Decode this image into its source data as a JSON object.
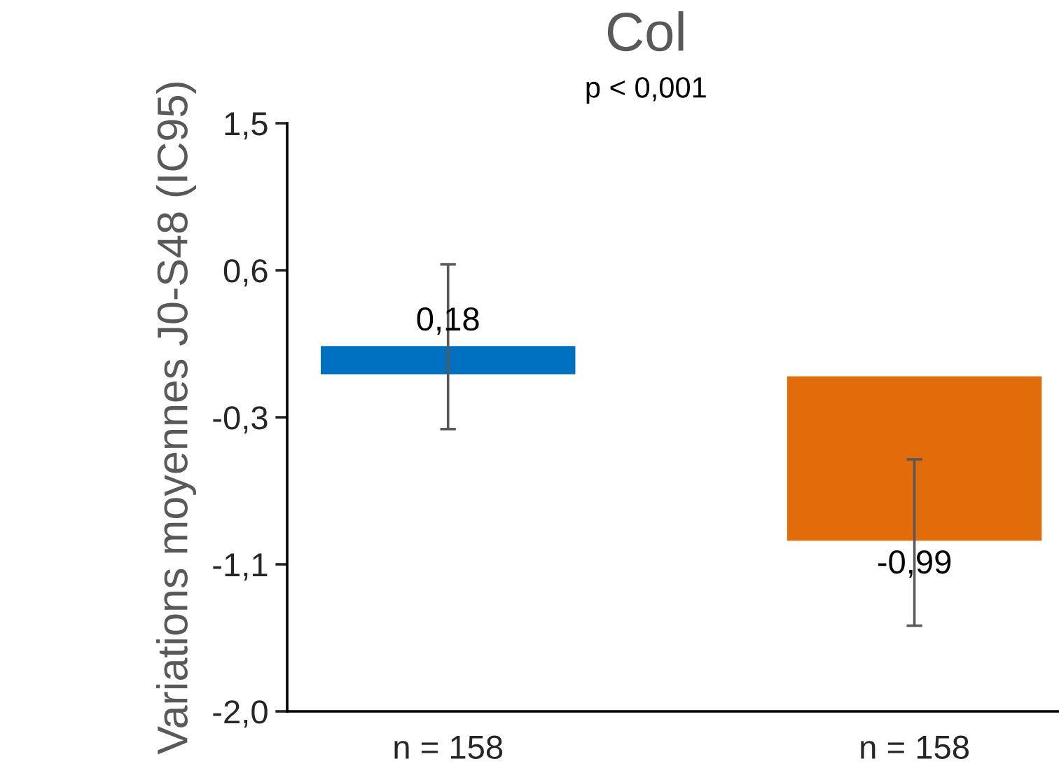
{
  "chart_data": {
    "type": "bar",
    "title": "Col",
    "subtitle": "p < 0,001",
    "ylabel": "Variations moyennes J0-S48 (IC95)",
    "categories": [
      "n = 158",
      "n = 158"
    ],
    "values": [
      0.18,
      -0.99
    ],
    "colors": [
      "#0070c0",
      "#e36c0a"
    ],
    "errors": [
      [
        -0.32,
        0.66
      ],
      [
        -1.49,
        -0.5
      ]
    ],
    "value_labels": [
      "0,18",
      "-0,99"
    ],
    "ylim": [
      -2.0,
      1.5
    ],
    "yticks": [
      {
        "value": -2.0,
        "label": "-2,0"
      },
      {
        "value": -1.125,
        "label": "-1,1"
      },
      {
        "value": -0.25,
        "label": "-0,3"
      },
      {
        "value": 0.625,
        "label": "0,6"
      },
      {
        "value": 1.5,
        "label": "1,5"
      }
    ],
    "grid": false,
    "legend": false
  }
}
